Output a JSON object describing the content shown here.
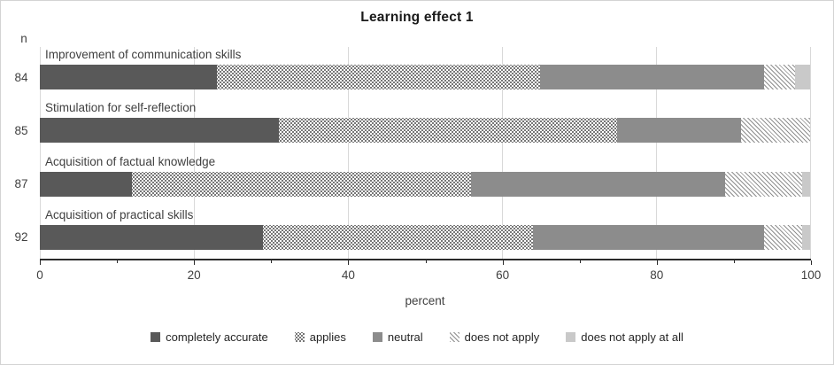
{
  "chart_data": {
    "type": "bar",
    "orientation": "horizontal-stacked",
    "title": "Learning effect 1",
    "xlabel": "percent",
    "n_label": "n",
    "xlim": [
      0,
      100
    ],
    "x_major_ticks": [
      0,
      20,
      40,
      60,
      80,
      100
    ],
    "x_minor_ticks": [
      10,
      30,
      50,
      70,
      90
    ],
    "grid": true,
    "legend_position": "bottom",
    "categories": [
      "Improvement of communication skills",
      "Stimulation for self-reflection",
      "Acquisition of factual knowledge",
      "Acquisition of practical skills"
    ],
    "n_values": [
      84,
      85,
      87,
      92
    ],
    "series": [
      {
        "name": "completely accurate",
        "style": "solid",
        "color": "#595959",
        "values": [
          23,
          31,
          12,
          29
        ]
      },
      {
        "name": "applies",
        "style": "dots",
        "color": "#4a4a4a",
        "values": [
          42,
          44,
          44,
          35
        ]
      },
      {
        "name": "neutral",
        "style": "solid",
        "color": "#8c8c8c",
        "values": [
          29,
          16,
          33,
          30
        ]
      },
      {
        "name": "does not apply",
        "style": "hatch",
        "color": "#8f8f8f",
        "values": [
          4,
          9,
          10,
          5
        ]
      },
      {
        "name": "does not apply at all",
        "style": "solid",
        "color": "#c9c9c9",
        "values": [
          2,
          0,
          1,
          1
        ]
      }
    ]
  },
  "colors": {
    "gridline": "#d9d9d9",
    "axis": "#2b2b2b",
    "label_text": "#404040",
    "title_text": "#1a1a1a",
    "frame_border": "#d3d3d3"
  }
}
